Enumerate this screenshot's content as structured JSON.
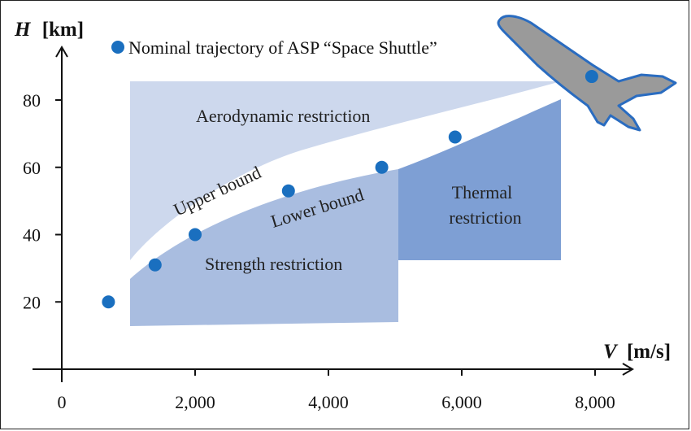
{
  "chart_data": {
    "type": "scatter",
    "title": "",
    "xlabel": {
      "symbol": "V",
      "unit": "[m/s]"
    },
    "ylabel": {
      "symbol": "H",
      "unit": "[km]"
    },
    "xlim": [
      0,
      8500
    ],
    "ylim": [
      0,
      95
    ],
    "xticks": [
      0,
      2000,
      4000,
      6000,
      8000
    ],
    "xtick_labels": [
      "0",
      "2,000",
      "4,000",
      "6,000",
      "8,000"
    ],
    "yticks": [
      20,
      40,
      60,
      80
    ],
    "ytick_labels": [
      "20",
      "40",
      "60",
      "80"
    ],
    "legend": {
      "label": "Nominal trajectory of ASP “Space Shuttle”",
      "placement": "top-left"
    },
    "series": [
      {
        "name": "Nominal trajectory of ASP “Space Shuttle”",
        "color": "#1a6fbf",
        "points": [
          {
            "x": 700,
            "y": 20
          },
          {
            "x": 1400,
            "y": 31
          },
          {
            "x": 2000,
            "y": 40
          },
          {
            "x": 3400,
            "y": 53
          },
          {
            "x": 4800,
            "y": 60
          },
          {
            "x": 5900,
            "y": 69
          },
          {
            "x": 7950,
            "y": 87
          }
        ]
      }
    ],
    "regions": [
      {
        "label": "Aerodynamic restriction",
        "color": "#cdd8ed"
      },
      {
        "label": "Strength restriction",
        "color": "#a9bde0"
      },
      {
        "label": "Thermal restriction",
        "color": "#7e9fd4"
      }
    ],
    "curve_labels": [
      "Upper bound",
      "Lower bound"
    ],
    "icon": "space-shuttle-icon"
  }
}
